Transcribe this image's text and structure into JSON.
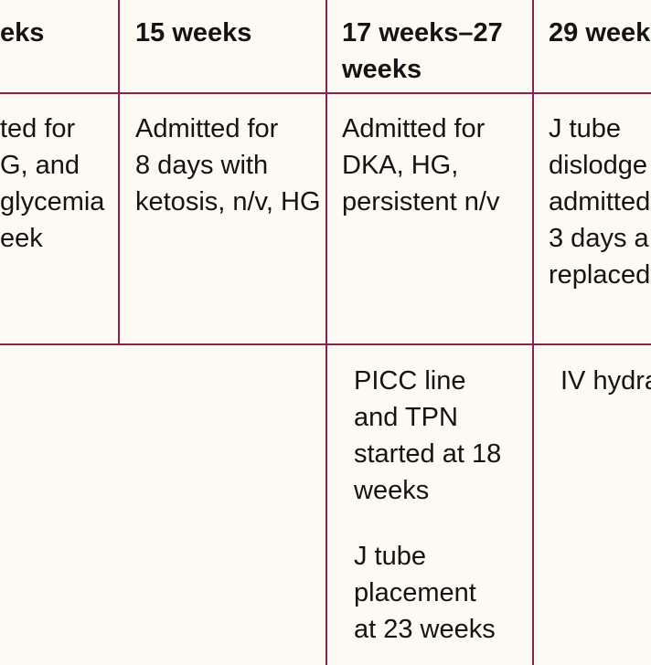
{
  "table": {
    "header": [
      [
        "eks"
      ],
      [
        "15 weeks"
      ],
      [
        "17 weeks–27",
        "weeks"
      ],
      [
        "29 week"
      ]
    ],
    "rows": [
      [
        [
          "ted for",
          "G, and",
          "glycemia",
          "eek"
        ],
        [
          "Admitted for",
          "8 days with",
          "ketosis, n/v, HG"
        ],
        [
          "Admitted for",
          "DKA, HG,",
          "persistent n/v"
        ],
        [
          "J tube",
          "dislodge",
          "admitted",
          "3 days a",
          "replaced"
        ]
      ],
      [
        [
          [
            "PICC line",
            "and TPN",
            "started at 18",
            "weeks"
          ],
          [
            "J tube",
            "placement",
            "at 23 weeks"
          ]
        ],
        [
          [
            "IV hydra"
          ]
        ]
      ]
    ]
  }
}
